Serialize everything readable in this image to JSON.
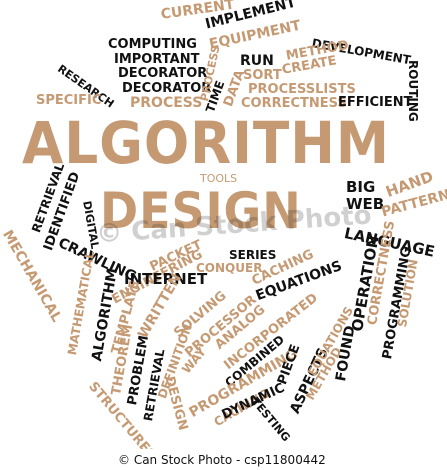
{
  "title": "ALGORITHM",
  "subtitle": "DESIGN",
  "words": {
    "current": "CURRENT",
    "implement": "IMPLEMENT",
    "computing": "COMPUTING",
    "important": "IMPORTANT",
    "equipment": "EQUIPMENT",
    "development": "DEVELOPMENT",
    "method": "METHOD",
    "create": "CREATE",
    "research": "RESEARCH",
    "decorator1": "DECORATOR",
    "decorator2": "DECORATOR",
    "run": "RUN",
    "sort": "SORT",
    "process_v": "PROCESS",
    "processlists": "PROCESSLISTS",
    "routing": "ROUTING",
    "specific": "SPECIFIC",
    "process": "PROCESS",
    "time": "TIME",
    "data": "DATA",
    "correctness": "CORRECTNESS",
    "efficient": "EFFICIENT",
    "tools": "TOOLS",
    "big": "BIG",
    "hand": "HAND",
    "web": "WEB",
    "pattern": "PATTERN",
    "language": "LANGUAGE",
    "retrieval": "RETRIEVAL",
    "identified": "IDENTIFIED",
    "digital": "DIGITAL",
    "mechanical": "MECHANICAL",
    "crawling": "CRAWLING",
    "series": "SERIES",
    "conquer": "CONQUER",
    "packet": "PACKET",
    "engineering": "ENGINEERING",
    "internet": "INTERNET",
    "caching": "CACHING",
    "equations": "EQUATIONS",
    "operation": "OPERATION",
    "correctness2": "CORRECTNESS",
    "programming1": "PROGRAMMING",
    "solution": "SOLUTION",
    "found": "FOUND",
    "mathematical": "MATHEMATICAL",
    "algorithm_v": "ALGORITHM",
    "template": "TEMPLATE",
    "written": "WRITTEN",
    "solving": "SOLVING",
    "processor": "PROCESSOR",
    "incorporated": "INCORPORATED",
    "analog": "ANALOG",
    "combined": "COMBINED",
    "theorem": "THEOREM",
    "problem": "PROBLEM",
    "definition": "DEFINITION",
    "way": "WAY",
    "programming2": "PROGRAMMING",
    "caching2": "CACHING",
    "piece": "PIECE",
    "dynamic": "DYNAMIC",
    "aspects": "ASPECTS",
    "method2": "METHOD",
    "equations2": "EQUATIONS",
    "retrieval2": "RETRIEVAL",
    "structures": "STRUCTURES",
    "design": "DESIGN",
    "testing": "TESTING"
  },
  "watermark": "© Can Stock Photo",
  "footer": {
    "left": "© Can Stock Photo - csp11800442"
  }
}
